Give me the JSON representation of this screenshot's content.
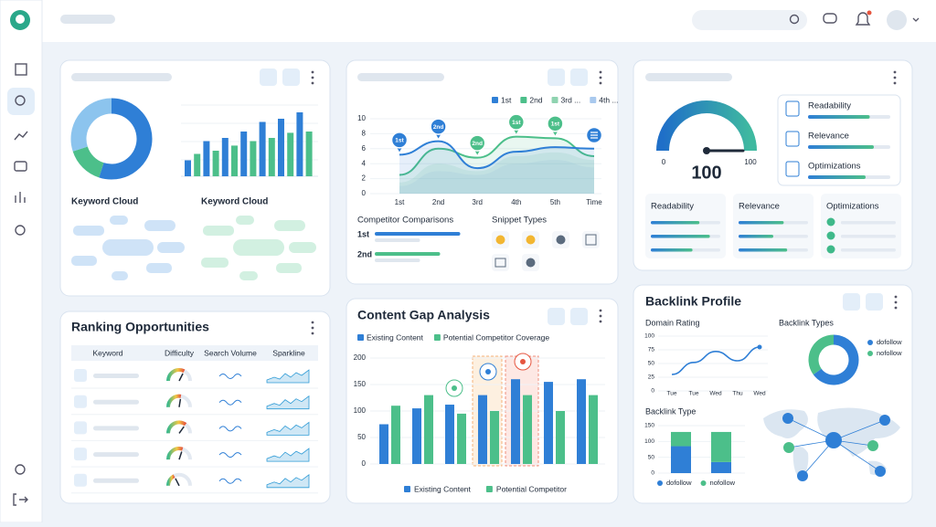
{
  "keyword_card": {
    "type": "donut-and-bars",
    "donut": [
      55,
      15,
      30
    ],
    "donut_colors": [
      "#2f7fd6",
      "#4cbf8a",
      "#8cc4ee"
    ],
    "bars": [
      25,
      35,
      55,
      40,
      60,
      48,
      70,
      55,
      85,
      60,
      90,
      68,
      100,
      70
    ],
    "bar_colors": [
      "#2f7fd6",
      "#4cbf8a"
    ],
    "clouds": [
      "Keyword Cloud",
      "Keyword Cloud"
    ]
  },
  "rank_chart": {
    "type": "line",
    "categories": [
      "1st",
      "2nd",
      "3rd",
      "4th",
      "5th",
      "Time"
    ],
    "series": [
      {
        "name": "1st",
        "color": "#2f7fd6",
        "values": [
          5.2,
          7,
          3.4,
          5.6,
          6.2,
          6
        ]
      },
      {
        "name": "2nd",
        "color": "#4cbf8a",
        "values": [
          2.5,
          6,
          4.8,
          7.6,
          7.4,
          5
        ]
      },
      {
        "name": "3rd ...",
        "color": "#8fd3b0",
        "values": [
          1.5,
          4,
          3,
          5,
          5.5,
          4.5
        ]
      },
      {
        "name": "4th ...",
        "color": "#a9c9ee",
        "values": [
          1,
          3,
          2.5,
          4,
          4.5,
          3.5
        ]
      }
    ],
    "ylim": [
      0,
      10
    ],
    "yticks": [
      0,
      2,
      4,
      6,
      8,
      10
    ],
    "markers": [
      "1st",
      "2nd",
      "2nd",
      "1st",
      "1st",
      null
    ]
  },
  "competitor": {
    "title": "Competitor Comparisons",
    "rows": [
      {
        "label": "1st",
        "color": "#2f7fd6",
        "values": [
          85,
          45
        ]
      },
      {
        "label": "2nd",
        "color": "#4cbf8a",
        "values": [
          65,
          45
        ]
      }
    ]
  },
  "snippet": {
    "title": "Snippet Types"
  },
  "seo_card": {
    "gauge": {
      "value": 100,
      "min": 0,
      "max": 100
    },
    "metrics": [
      {
        "label": "Readability",
        "value": 75
      },
      {
        "label": "Relevance",
        "value": 80
      },
      {
        "label": "Optimizations",
        "value": 70
      }
    ],
    "panels": [
      {
        "label": "Readability",
        "values": [
          70,
          85,
          60
        ]
      },
      {
        "label": "Relevance",
        "values": [
          65,
          50,
          70
        ]
      },
      {
        "label": "Optimizations",
        "values": [
          55,
          60,
          45
        ]
      }
    ]
  },
  "ranking_table": {
    "title": "Ranking Opportunities",
    "headers": [
      "Keyword",
      "Difficulty",
      "Search Volume",
      "Sparkline"
    ],
    "difficulty": [
      65,
      55,
      70,
      60,
      35
    ]
  },
  "content_gap": {
    "type": "bar",
    "title": "Content Gap Analysis",
    "categories": [
      null,
      null,
      null,
      null,
      null,
      null,
      null
    ],
    "series": [
      {
        "name": "Existing Content",
        "color": "#2f7fd6",
        "values": [
          75,
          105,
          112,
          130,
          160,
          155,
          160
        ]
      },
      {
        "name": "Potential Competitor Coverage",
        "color": "#4cbf8a",
        "values": [
          110,
          130,
          95,
          100,
          130,
          100,
          130
        ]
      }
    ],
    "ylim": [
      0,
      200
    ],
    "yticks": [
      0,
      50,
      100,
      150,
      200
    ],
    "bottom_legend": [
      "Existing Content",
      "Potential Competitor"
    ]
  },
  "backlink": {
    "title": "Backlink Profile",
    "domain_rating": {
      "type": "line",
      "title": "Domain Rating",
      "categories": [
        "Tue",
        "Tue",
        "Wed",
        "Thu",
        "Wed"
      ],
      "values": [
        30,
        52,
        72,
        55,
        80
      ],
      "color": "#2f7fd6",
      "ylim": [
        0,
        100
      ],
      "yticks": [
        0,
        25,
        50,
        75,
        100
      ]
    },
    "types": {
      "type": "pie",
      "title": "Backlink Types",
      "categories": [
        "dofollow",
        "nofollow"
      ],
      "values": [
        65,
        35
      ],
      "colors": [
        "#2f7fd6",
        "#4cbf8a"
      ]
    },
    "type_bars": {
      "type": "stacked-bar",
      "title": "Backlink Type",
      "categories": [
        null,
        null
      ],
      "series": [
        {
          "name": "dofollow",
          "color": "#2f7fd6",
          "values": [
            85,
            35
          ]
        },
        {
          "name": "nofollow",
          "color": "#4cbf8a",
          "values": [
            45,
            95
          ]
        }
      ],
      "ylim": [
        0,
        150
      ],
      "yticks": [
        0,
        50,
        100,
        150
      ]
    }
  }
}
